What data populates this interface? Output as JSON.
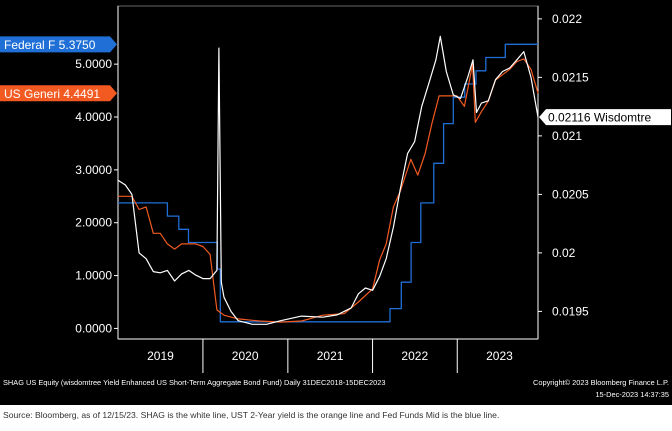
{
  "chart_data": {
    "type": "line",
    "left_axis": {
      "ticks": [
        "0.0000",
        "1.0000",
        "2.0000",
        "3.0000",
        "4.0000",
        "5.0000"
      ],
      "range": [
        -0.2,
        6.1
      ]
    },
    "right_axis": {
      "ticks": [
        "0.0195",
        "0.02",
        "0.0205",
        "0.021",
        "0.0215",
        "0.022"
      ],
      "range": [
        0.019264,
        0.02211
      ]
    },
    "x_axis": {
      "range": [
        "2018-12-31",
        "2023-12-15"
      ],
      "tick_labels": [
        "2019",
        "2020",
        "2021",
        "2022",
        "2023"
      ],
      "label_positions": [
        "2019-07-02",
        "2020-07-01",
        "2021-07-02",
        "2022-07-02",
        "2023-07-02"
      ],
      "year_boundaries": [
        "2020-01-01",
        "2021-01-01",
        "2022-01-01",
        "2023-01-01"
      ]
    },
    "legend_tags": [
      {
        "text": "Federal F 5.3750",
        "color": "#1f6fd6",
        "axis": "left",
        "value": 5.375
      },
      {
        "text": "US Generi 4.4491",
        "color": "#f25a21",
        "axis": "left",
        "value": 4.4491
      },
      {
        "text": "0.02116 Wisdomtre",
        "color": "#ffffff",
        "axis": "right",
        "value": 0.02116
      }
    ],
    "grid": false,
    "series": [
      {
        "color": "#1f6fd6",
        "axis": "left",
        "step": true,
        "points": [
          [
            "2018-12-31",
            2.375
          ],
          [
            "2019-08-01",
            2.125
          ],
          [
            "2019-09-19",
            1.875
          ],
          [
            "2019-10-31",
            1.625
          ],
          [
            "2020-03-03",
            1.125
          ],
          [
            "2020-03-16",
            0.125
          ],
          [
            "2022-03-17",
            0.375
          ],
          [
            "2022-05-05",
            0.875
          ],
          [
            "2022-06-16",
            1.625
          ],
          [
            "2022-07-28",
            2.375
          ],
          [
            "2022-09-22",
            3.125
          ],
          [
            "2022-11-03",
            3.875
          ],
          [
            "2022-12-15",
            4.375
          ],
          [
            "2023-02-02",
            4.625
          ],
          [
            "2023-03-23",
            4.875
          ],
          [
            "2023-05-04",
            5.125
          ],
          [
            "2023-07-27",
            5.375
          ],
          [
            "2023-12-15",
            5.375
          ]
        ]
      },
      {
        "color": "#f25a21",
        "axis": "left",
        "points": [
          [
            "2018-12-31",
            2.5
          ],
          [
            "2019-02-01",
            2.5
          ],
          [
            "2019-03-01",
            2.5
          ],
          [
            "2019-04-01",
            2.25
          ],
          [
            "2019-05-01",
            2.3
          ],
          [
            "2019-06-01",
            1.8
          ],
          [
            "2019-07-01",
            1.8
          ],
          [
            "2019-08-01",
            1.6
          ],
          [
            "2019-09-01",
            1.5
          ],
          [
            "2019-10-01",
            1.6
          ],
          [
            "2019-11-01",
            1.6
          ],
          [
            "2019-12-01",
            1.6
          ],
          [
            "2020-01-01",
            1.55
          ],
          [
            "2020-02-01",
            1.4
          ],
          [
            "2020-03-01",
            0.35
          ],
          [
            "2020-04-01",
            0.25
          ],
          [
            "2020-06-01",
            0.18
          ],
          [
            "2020-09-01",
            0.14
          ],
          [
            "2020-12-01",
            0.12
          ],
          [
            "2021-03-01",
            0.14
          ],
          [
            "2021-06-01",
            0.25
          ],
          [
            "2021-09-01",
            0.28
          ],
          [
            "2021-11-01",
            0.5
          ],
          [
            "2022-01-01",
            0.75
          ],
          [
            "2022-02-01",
            1.3
          ],
          [
            "2022-03-01",
            1.6
          ],
          [
            "2022-04-01",
            2.3
          ],
          [
            "2022-05-01",
            2.6
          ],
          [
            "2022-06-15",
            3.2
          ],
          [
            "2022-07-15",
            2.9
          ],
          [
            "2022-08-15",
            3.3
          ],
          [
            "2022-09-15",
            3.9
          ],
          [
            "2022-10-15",
            4.4
          ],
          [
            "2022-11-15",
            4.4
          ],
          [
            "2022-12-31",
            4.4
          ],
          [
            "2023-02-01",
            4.2
          ],
          [
            "2023-03-08",
            5.0
          ],
          [
            "2023-03-20",
            3.9
          ],
          [
            "2023-04-15",
            4.1
          ],
          [
            "2023-05-15",
            4.3
          ],
          [
            "2023-06-15",
            4.7
          ],
          [
            "2023-07-15",
            4.8
          ],
          [
            "2023-08-15",
            4.9
          ],
          [
            "2023-09-15",
            5.05
          ],
          [
            "2023-10-15",
            5.1
          ],
          [
            "2023-11-15",
            4.9
          ],
          [
            "2023-12-15",
            4.45
          ]
        ]
      },
      {
        "color": "#ffffff",
        "axis": "right",
        "points": [
          [
            "2018-12-31",
            0.02062
          ],
          [
            "2019-02-01",
            0.02058
          ],
          [
            "2019-03-01",
            0.0205
          ],
          [
            "2019-04-01",
            0.02
          ],
          [
            "2019-05-01",
            0.01995
          ],
          [
            "2019-06-01",
            0.01984
          ],
          [
            "2019-07-01",
            0.01983
          ],
          [
            "2019-08-01",
            0.01985
          ],
          [
            "2019-09-01",
            0.01976
          ],
          [
            "2019-10-01",
            0.01982
          ],
          [
            "2019-11-01",
            0.01985
          ],
          [
            "2019-12-01",
            0.01981
          ],
          [
            "2020-01-01",
            0.01978
          ],
          [
            "2020-02-01",
            0.01978
          ],
          [
            "2020-03-01",
            0.01985
          ],
          [
            "2020-03-10",
            0.02175
          ],
          [
            "2020-03-20",
            0.01975
          ],
          [
            "2020-04-01",
            0.01962
          ],
          [
            "2020-05-01",
            0.0195
          ],
          [
            "2020-06-01",
            0.01942
          ],
          [
            "2020-08-01",
            0.01939
          ],
          [
            "2020-10-01",
            0.01939
          ],
          [
            "2020-12-01",
            0.01942
          ],
          [
            "2021-03-01",
            0.01946
          ],
          [
            "2021-06-01",
            0.01945
          ],
          [
            "2021-08-01",
            0.01947
          ],
          [
            "2021-10-01",
            0.01953
          ],
          [
            "2021-11-01",
            0.01965
          ],
          [
            "2021-12-01",
            0.0197
          ],
          [
            "2022-01-01",
            0.01968
          ],
          [
            "2022-02-01",
            0.0198
          ],
          [
            "2022-03-01",
            0.01995
          ],
          [
            "2022-04-01",
            0.02022
          ],
          [
            "2022-05-01",
            0.02055
          ],
          [
            "2022-06-01",
            0.02085
          ],
          [
            "2022-07-01",
            0.02095
          ],
          [
            "2022-08-01",
            0.02125
          ],
          [
            "2022-09-01",
            0.02145
          ],
          [
            "2022-10-01",
            0.02165
          ],
          [
            "2022-10-20",
            0.02185
          ],
          [
            "2022-11-15",
            0.02155
          ],
          [
            "2022-12-15",
            0.02135
          ],
          [
            "2023-01-15",
            0.02132
          ],
          [
            "2023-02-15",
            0.0215
          ],
          [
            "2023-03-10",
            0.02165
          ],
          [
            "2023-03-25",
            0.0212
          ],
          [
            "2023-04-15",
            0.02128
          ],
          [
            "2023-05-15",
            0.0213
          ],
          [
            "2023-06-15",
            0.02148
          ],
          [
            "2023-07-15",
            0.02155
          ],
          [
            "2023-08-15",
            0.02158
          ],
          [
            "2023-09-15",
            0.02165
          ],
          [
            "2023-10-15",
            0.02172
          ],
          [
            "2023-11-15",
            0.0215
          ],
          [
            "2023-12-15",
            0.02116
          ]
        ]
      }
    ],
    "footer_left": "SHAG US Equity (wisdomtree Yield Enhanced US Short-Term Aggregate Bond Fund) Daily 31DEC2018-15DEC2023",
    "footer_right": "Copyright© 2023 Bloomberg Finance L.P.",
    "footer_date": "15-Dec-2023 14:37:35"
  },
  "source_note": "Source: Bloomberg, as of 12/15/23. SHAG is the white line, UST 2-Year yield is the orange line and Fed Funds Mid is the blue line."
}
